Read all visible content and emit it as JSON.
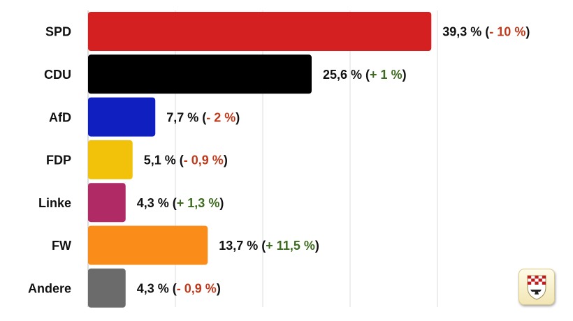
{
  "chart_data": {
    "type": "bar",
    "orientation": "horizontal",
    "categories": [
      "SPD",
      "CDU",
      "AfD",
      "FDP",
      "Linke",
      "FW",
      "Andere"
    ],
    "values": [
      39.3,
      25.6,
      7.7,
      5.1,
      4.3,
      13.7,
      4.3
    ],
    "value_labels": [
      "39,3 %",
      "25,6 %",
      "7,7 %",
      "5,1 %",
      "4,3 %",
      "13,7 %",
      "4,3 %"
    ],
    "changes": [
      "- 10 %",
      "+ 1 %",
      "- 2 %",
      "- 0,9 %",
      "+ 1,3 %",
      "+ 11,5 %",
      "- 0,9 %"
    ],
    "change_direction": [
      "neg",
      "pos",
      "neg",
      "neg",
      "pos",
      "pos",
      "neg"
    ],
    "colors": [
      "#d42020",
      "#000000",
      "#1020c0",
      "#f2c20a",
      "#b02a66",
      "#fa8c1a",
      "#6b6b6b"
    ],
    "colors_change": {
      "neg": "#c0391b",
      "pos": "#3d6b1f"
    },
    "xlim": [
      0,
      40
    ],
    "grid": true,
    "legend": false
  },
  "logo": {
    "icon": "coat-of-arms-icon"
  }
}
